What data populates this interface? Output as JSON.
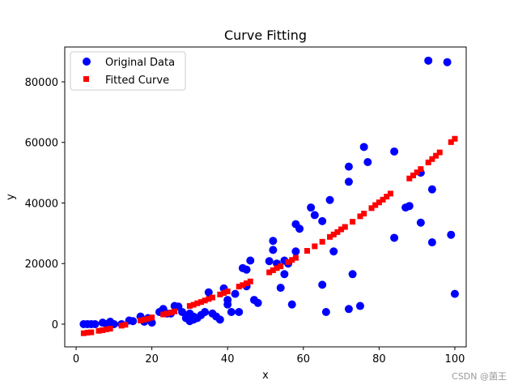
{
  "chart_data": {
    "type": "scatter",
    "title": "Curve Fitting",
    "xlabel": "x",
    "ylabel": "y",
    "xlim": [
      -3,
      103
    ],
    "ylim": [
      -7500,
      91500
    ],
    "xticks": [
      0,
      20,
      40,
      60,
      80,
      100
    ],
    "yticks": [
      0,
      20000,
      40000,
      60000,
      80000
    ],
    "legend_position": "top-left",
    "series": [
      {
        "name": "Original Data",
        "marker": "circle",
        "color": "#0000ff",
        "x": [
          2,
          3,
          4,
          5,
          7,
          8,
          9,
          10,
          12,
          14,
          15,
          17,
          18,
          19,
          20,
          22,
          23,
          24,
          25,
          26,
          27,
          28,
          29,
          30,
          30,
          31,
          31,
          32,
          33,
          34,
          35,
          36,
          37,
          38,
          39,
          40,
          40,
          41,
          42,
          43,
          44,
          45,
          45,
          46,
          47,
          48,
          51,
          52,
          52,
          53,
          54,
          55,
          55,
          56,
          57,
          58,
          58,
          59,
          62,
          63,
          65,
          65,
          66,
          67,
          68,
          72,
          72,
          72,
          73,
          75,
          76,
          77,
          84,
          84,
          87,
          88,
          91,
          91,
          93,
          94,
          94,
          98,
          99,
          100
        ],
        "y": [
          0,
          0,
          0,
          0,
          500,
          0,
          800,
          0,
          0,
          1200,
          1000,
          2500,
          800,
          2000,
          500,
          4000,
          5000,
          3500,
          3500,
          6000,
          5800,
          4000,
          2000,
          1000,
          3500,
          1500,
          2500,
          2000,
          3000,
          4000,
          10500,
          3500,
          2500,
          1500,
          11800,
          8000,
          6500,
          4000,
          10000,
          4000,
          18500,
          18000,
          12500,
          21000,
          8000,
          7000,
          20800,
          27500,
          24500,
          20000,
          12000,
          21000,
          16500,
          20000,
          6500,
          33000,
          24000,
          31500,
          38500,
          36000,
          13000,
          34000,
          4000,
          41000,
          24000,
          52000,
          47000,
          5000,
          16500,
          6000,
          58500,
          53500,
          57000,
          28500,
          38500,
          39000,
          50000,
          33500,
          87000,
          44500,
          27000,
          86500,
          29500,
          10000
        ]
      },
      {
        "name": "Fitted Curve",
        "marker": "square",
        "color": "#ff0000",
        "x": [
          2,
          3,
          4,
          6,
          7,
          8,
          9,
          12,
          13,
          17,
          18,
          19,
          20,
          23,
          24,
          25,
          26,
          30,
          31,
          32,
          33,
          34,
          35,
          36,
          38,
          39,
          40,
          43,
          44,
          45,
          46,
          51,
          52,
          53,
          54,
          56,
          57,
          58,
          61,
          63,
          65,
          67,
          68,
          69,
          70,
          71,
          73,
          75,
          76,
          78,
          79,
          80,
          81,
          82,
          83,
          88,
          89,
          90,
          91,
          93,
          94,
          95,
          96,
          99,
          100
        ],
        "y": [
          -3000,
          -2800,
          -2700,
          -2200,
          -2000,
          -1700,
          -1500,
          -500,
          -200,
          1200,
          1500,
          1800,
          2200,
          3200,
          3500,
          3800,
          4200,
          6000,
          6400,
          6900,
          7300,
          7800,
          8300,
          8800,
          9800,
          10300,
          10800,
          12400,
          12900,
          13500,
          14100,
          17100,
          17800,
          18500,
          19100,
          20500,
          21200,
          21900,
          24200,
          25700,
          27200,
          28800,
          29600,
          30400,
          31300,
          32100,
          33800,
          35600,
          36500,
          38300,
          39300,
          40200,
          41100,
          42100,
          43100,
          48100,
          49100,
          50100,
          51200,
          53400,
          54500,
          55600,
          56700,
          60100,
          61200
        ]
      }
    ]
  },
  "watermark": "CSDN @菌王"
}
